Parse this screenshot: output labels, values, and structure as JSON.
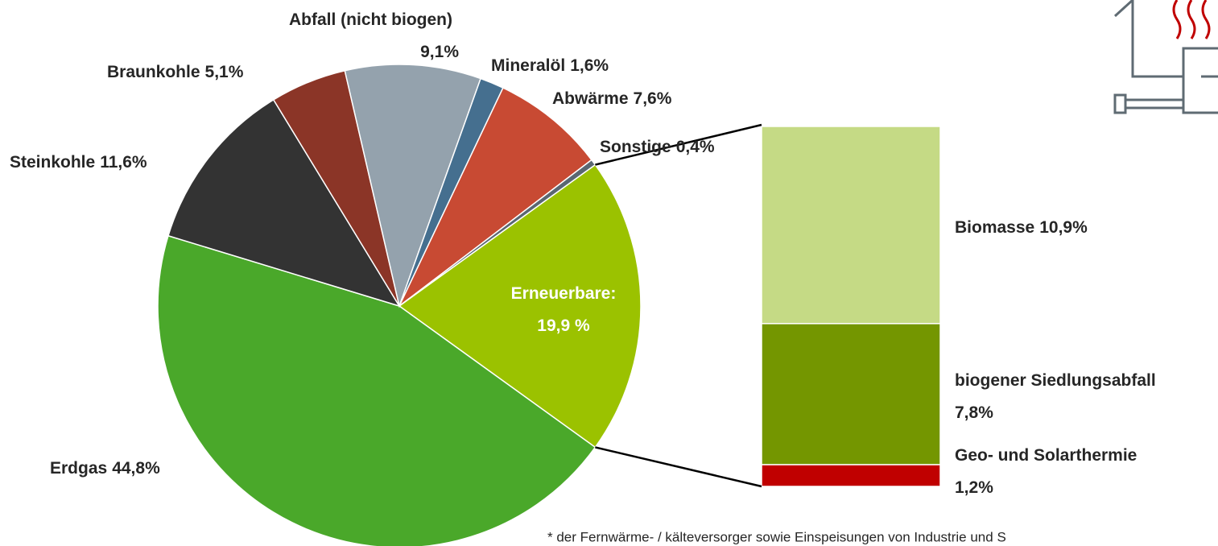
{
  "chart_data": [
    {
      "type": "pie",
      "categories": [
        "Erneuerbare:",
        "Erdgas",
        "Steinkohle",
        "Braunkohle",
        "Abfall (nicht biogen)",
        "Mineralöl",
        "Abwärme",
        "Sonstige"
      ],
      "values": [
        19.9,
        44.8,
        11.6,
        5.1,
        9.1,
        1.6,
        7.6,
        0.4
      ],
      "value_labels": [
        "19,9 %",
        "44,8%",
        "11,6%",
        "5,1%",
        "9,1%",
        "1,6%",
        "7,6%",
        "0,4%"
      ],
      "colors": [
        "#9bc200",
        "#4aa82a",
        "#333333",
        "#8b3527",
        "#94a2ad",
        "#456f8f",
        "#c84a33",
        "#5a6772"
      ]
    },
    {
      "type": "stacked_bar",
      "categories": [
        "Biomasse",
        "biogener Siedlungsabfall",
        "Geo- und Solarthermie"
      ],
      "values": [
        10.9,
        7.8,
        1.2
      ],
      "value_labels": [
        "10,9%",
        "7,8%",
        "1,2%"
      ],
      "colors": [
        "#c5da85",
        "#749600",
        "#c00000"
      ]
    }
  ],
  "footnote": "* der Fernwärme- / kälteversorger sowie Einspeisungen von Industrie und S"
}
